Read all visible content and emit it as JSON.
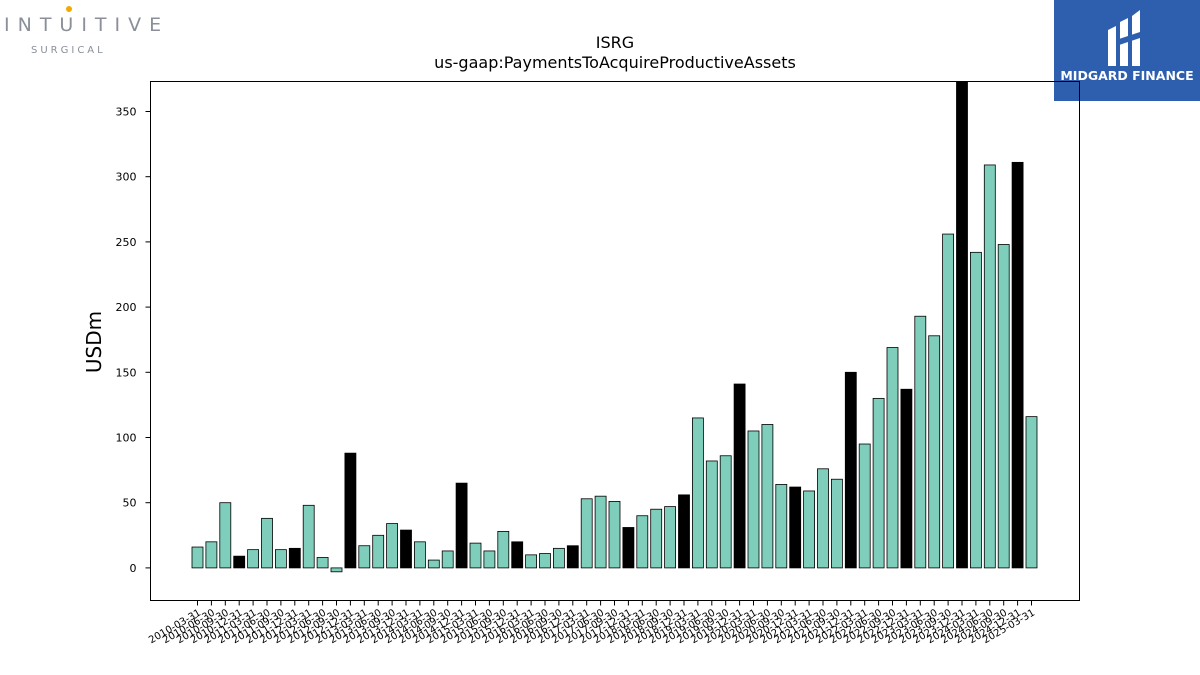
{
  "logos": {
    "left": {
      "word": "INTUITIVE",
      "sub": "SURGICAL",
      "dot_color": "#f2a900"
    },
    "right": {
      "name": "MIDGARD FINANCE",
      "bg_color": "#2d5fae"
    }
  },
  "chart_data": {
    "type": "bar",
    "title": "ISRG",
    "subtitle": "us-gaap:PaymentsToAcquireProductiveAssets",
    "xlabel": "",
    "ylabel": "USDm",
    "ylim": [
      -25,
      373
    ],
    "yticks": [
      0,
      50,
      100,
      150,
      200,
      250,
      300,
      350
    ],
    "grid": false,
    "legend": "none",
    "colors": {
      "quarter": "#7fcdbb",
      "year_end": "#000000",
      "edge": "#000000"
    },
    "categories": [
      "2010-03-31",
      "2010-06-30",
      "2010-09-30",
      "2010-12-31",
      "2011-03-31",
      "2011-06-30",
      "2011-09-30",
      "2011-12-31",
      "2012-03-31",
      "2012-06-30",
      "2012-09-30",
      "2012-12-31",
      "2013-03-31",
      "2013-06-30",
      "2013-09-30",
      "2013-12-31",
      "2014-03-31",
      "2014-06-30",
      "2014-09-30",
      "2014-12-31",
      "2015-03-31",
      "2015-06-30",
      "2015-09-30",
      "2015-12-31",
      "2016-03-31",
      "2016-06-30",
      "2016-09-30",
      "2016-12-31",
      "2017-03-31",
      "2017-06-30",
      "2017-09-30",
      "2017-12-31",
      "2018-03-31",
      "2018-06-30",
      "2018-09-30",
      "2018-12-31",
      "2019-03-31",
      "2019-06-30",
      "2019-09-30",
      "2019-12-31",
      "2020-03-31",
      "2020-06-30",
      "2020-09-30",
      "2020-12-31",
      "2021-03-31",
      "2021-06-30",
      "2021-09-30",
      "2021-12-31",
      "2022-03-31",
      "2022-06-30",
      "2022-09-30",
      "2022-12-31",
      "2023-03-31",
      "2023-06-30",
      "2023-09-30",
      "2023-12-31",
      "2024-03-31",
      "2024-06-30",
      "2024-09-30",
      "2024-12-31",
      "2025-03-31"
    ],
    "values": [
      16,
      20,
      50,
      9,
      14,
      38,
      14,
      15,
      48,
      8,
      -3,
      88,
      17,
      25,
      34,
      29,
      20,
      6,
      13,
      65,
      19,
      13,
      28,
      20,
      10,
      11,
      15,
      17,
      53,
      55,
      51,
      31,
      40,
      45,
      47,
      56,
      115,
      82,
      86,
      141,
      105,
      110,
      64,
      62,
      59,
      76,
      68,
      150,
      95,
      130,
      169,
      137,
      193,
      178,
      256,
      373,
      242,
      309,
      248,
      311,
      116
    ],
    "year_end": [
      false,
      false,
      false,
      true,
      false,
      false,
      false,
      true,
      false,
      false,
      false,
      true,
      false,
      false,
      false,
      true,
      false,
      false,
      false,
      true,
      false,
      false,
      false,
      true,
      false,
      false,
      false,
      true,
      false,
      false,
      false,
      true,
      false,
      false,
      false,
      true,
      false,
      false,
      false,
      true,
      false,
      false,
      false,
      true,
      false,
      false,
      false,
      true,
      false,
      false,
      false,
      true,
      false,
      false,
      false,
      true,
      false,
      false,
      false,
      true,
      false
    ],
    "xtick_labels": [
      "2010-03-31",
      "2010-06-30",
      "2010-09-30",
      "2010-12-31",
      "2011-03-31",
      "2011-06-30",
      "2011-09-30",
      "2011-12-31",
      "2012-03-31",
      "2012-06-30",
      "2012-09-30",
      "2012-12-31",
      "2013-03-31",
      "2013-06-30",
      "2013-09-30",
      "2013-12-31",
      "2014-03-31",
      "2014-06-30",
      "2014-09-30",
      "2014-12-31",
      "2015-03-31",
      "2015-06-30",
      "2015-09-30",
      "2015-12-31",
      "2016-03-31",
      "2016-06-30",
      "2016-09-30",
      "2016-12-31",
      "2017-03-31",
      "2017-06-30",
      "2017-09-30",
      "2017-12-31",
      "2018-03-31",
      "2018-06-30",
      "2018-09-30",
      "2018-12-31",
      "2019-03-31",
      "2019-06-30",
      "2019-09-30",
      "2019-12-31",
      "2020-03-31",
      "2020-06-30",
      "2020-09-30",
      "2020-12-31",
      "2021-03-31",
      "2021-06-30",
      "2021-09-30",
      "2021-12-31",
      "2022-03-31",
      "2022-06-30",
      "2022-09-30",
      "2022-12-31",
      "2023-03-31",
      "2023-06-30",
      "2023-09-30",
      "2023-12-31",
      "2024-03-31",
      "2024-06-30",
      "2024-09-30",
      "2024-12-31",
      "2025-03-31"
    ]
  }
}
